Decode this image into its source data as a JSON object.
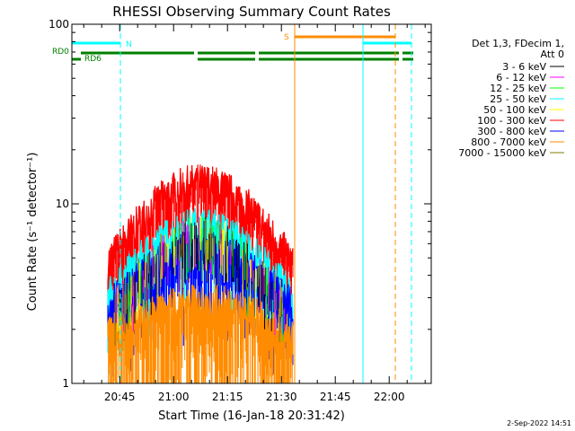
{
  "chart_data": {
    "type": "line",
    "title": "RHESSI Observing Summary Count Rates",
    "xlabel": "Start Time (16-Jan-18 20:31:42)",
    "ylabel": "Count Rate (s⁻¹ detector⁻¹)",
    "yscale": "log",
    "ylim": [
      1,
      100
    ],
    "xlim_minutes_after_start": [
      0,
      100
    ],
    "y_ticks": [
      "1",
      "10",
      "100"
    ],
    "x_ticks": [
      "20:45",
      "21:00",
      "21:15",
      "21:30",
      "21:45",
      "22:00"
    ],
    "x_tick_minutes": [
      13.3,
      28.3,
      43.3,
      58.3,
      73.3,
      88.3
    ],
    "legend": {
      "header": [
        "Det 1,3, FDecim 1,",
        "Att 0"
      ],
      "placement": "right",
      "entries": [
        {
          "label": "3 - 6 keV",
          "color": "#000000"
        },
        {
          "label": "6 - 12 keV",
          "color": "#ff00ff"
        },
        {
          "label": "12 - 25 keV",
          "color": "#00ff00"
        },
        {
          "label": "25 - 50 keV",
          "color": "#00ffff"
        },
        {
          "label": "50 - 100 keV",
          "color": "#ffff00"
        },
        {
          "label": "100 - 300 keV",
          "color": "#ff0000"
        },
        {
          "label": "300 - 800 keV",
          "color": "#0000ff"
        },
        {
          "label": "800 - 7000 keV",
          "color": "#ff8c00"
        },
        {
          "label": "7000 - 15000 keV",
          "color": "#808000"
        }
      ]
    },
    "flags": {
      "rd0_label": "RD0",
      "rd6_label": "RD6",
      "n_label": "N",
      "s_label": "S",
      "rd_segments_minutes": [
        [
          2.5,
          34
        ],
        [
          35,
          51
        ],
        [
          52,
          91
        ],
        [
          92,
          95
        ]
      ],
      "rd0_segment_minutes": [
        0,
        1.5
      ],
      "night_segments_minutes": [
        [
          0,
          13.5
        ],
        [
          81,
          94.5
        ]
      ],
      "saa_segment_minutes": [
        62,
        90
      ],
      "cyan_solid_line_minutes": [
        0,
        81
      ],
      "cyan_dashed_line_minutes": [
        13.5,
        94.5
      ],
      "orange_solid_line_minutes": [
        62
      ],
      "orange_dashed_line_minutes": [
        90
      ]
    },
    "envelope": {
      "data_range_minutes": [
        10,
        61.5
      ],
      "red_peak_level": 14,
      "series_levels": [
        {
          "name": "100 - 300 keV",
          "color": "#ff0000",
          "base": 5.0,
          "peak": 14
        },
        {
          "name": "25 - 50 keV",
          "color": "#00ffff",
          "base": 3.2,
          "peak": 8
        },
        {
          "name": "300 - 800 keV",
          "color": "#0000ff",
          "base": 2.8,
          "peak": 6
        },
        {
          "name": "800 - 7000 keV",
          "color": "#ff8c00",
          "base": 2.0,
          "peak": 3
        }
      ]
    }
  },
  "footer": {
    "date": "2-Sep-2022 14:51"
  }
}
